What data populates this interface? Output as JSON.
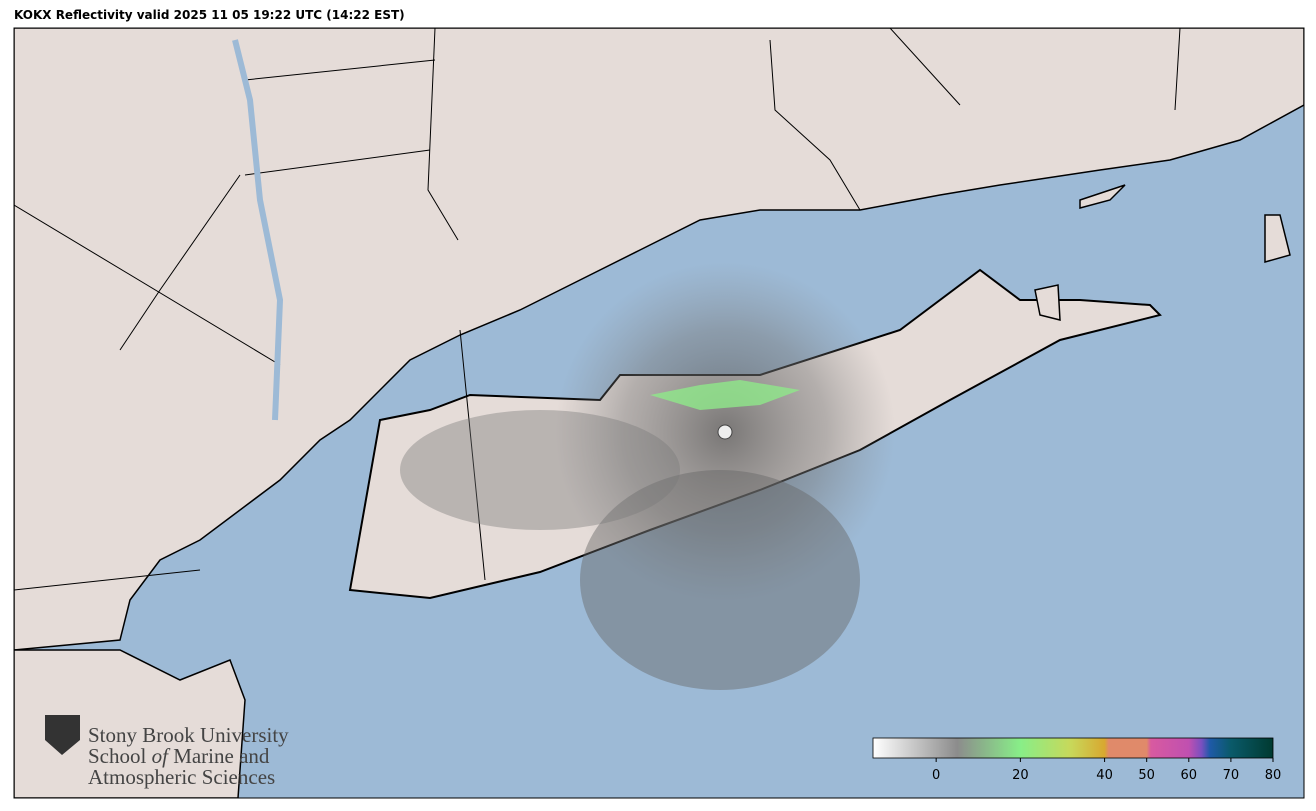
{
  "header": {
    "title": "KOKX Reflectivity valid 2025 11 05 19:22 UTC (14:22 EST)"
  },
  "logo": {
    "line1": "Stony Brook University",
    "line2": [
      "School",
      "of",
      "Marine and"
    ],
    "line3": "Atmospheric Sciences"
  },
  "colorbar": {
    "xlim": [
      -15,
      80
    ],
    "xticks": [
      0,
      20,
      40,
      50,
      60,
      70,
      80
    ],
    "stops": [
      {
        "value": -15,
        "color": "#ffffff"
      },
      {
        "value": 5,
        "color": "#8c8c8c"
      },
      {
        "value": 20,
        "color": "#88ee88"
      },
      {
        "value": 32,
        "color": "#c8d85a"
      },
      {
        "value": 40,
        "color": "#d8a830"
      },
      {
        "value": 41,
        "color": "#e08a6a"
      },
      {
        "value": 50,
        "color": "#e08a6a"
      },
      {
        "value": 51,
        "color": "#d85aa0"
      },
      {
        "value": 60,
        "color": "#c050b0"
      },
      {
        "value": 63,
        "color": "#7a50c0"
      },
      {
        "value": 65,
        "color": "#1f5aa8"
      },
      {
        "value": 70,
        "color": "#0a5a6a"
      },
      {
        "value": 80,
        "color": "#003a30"
      }
    ]
  }
}
